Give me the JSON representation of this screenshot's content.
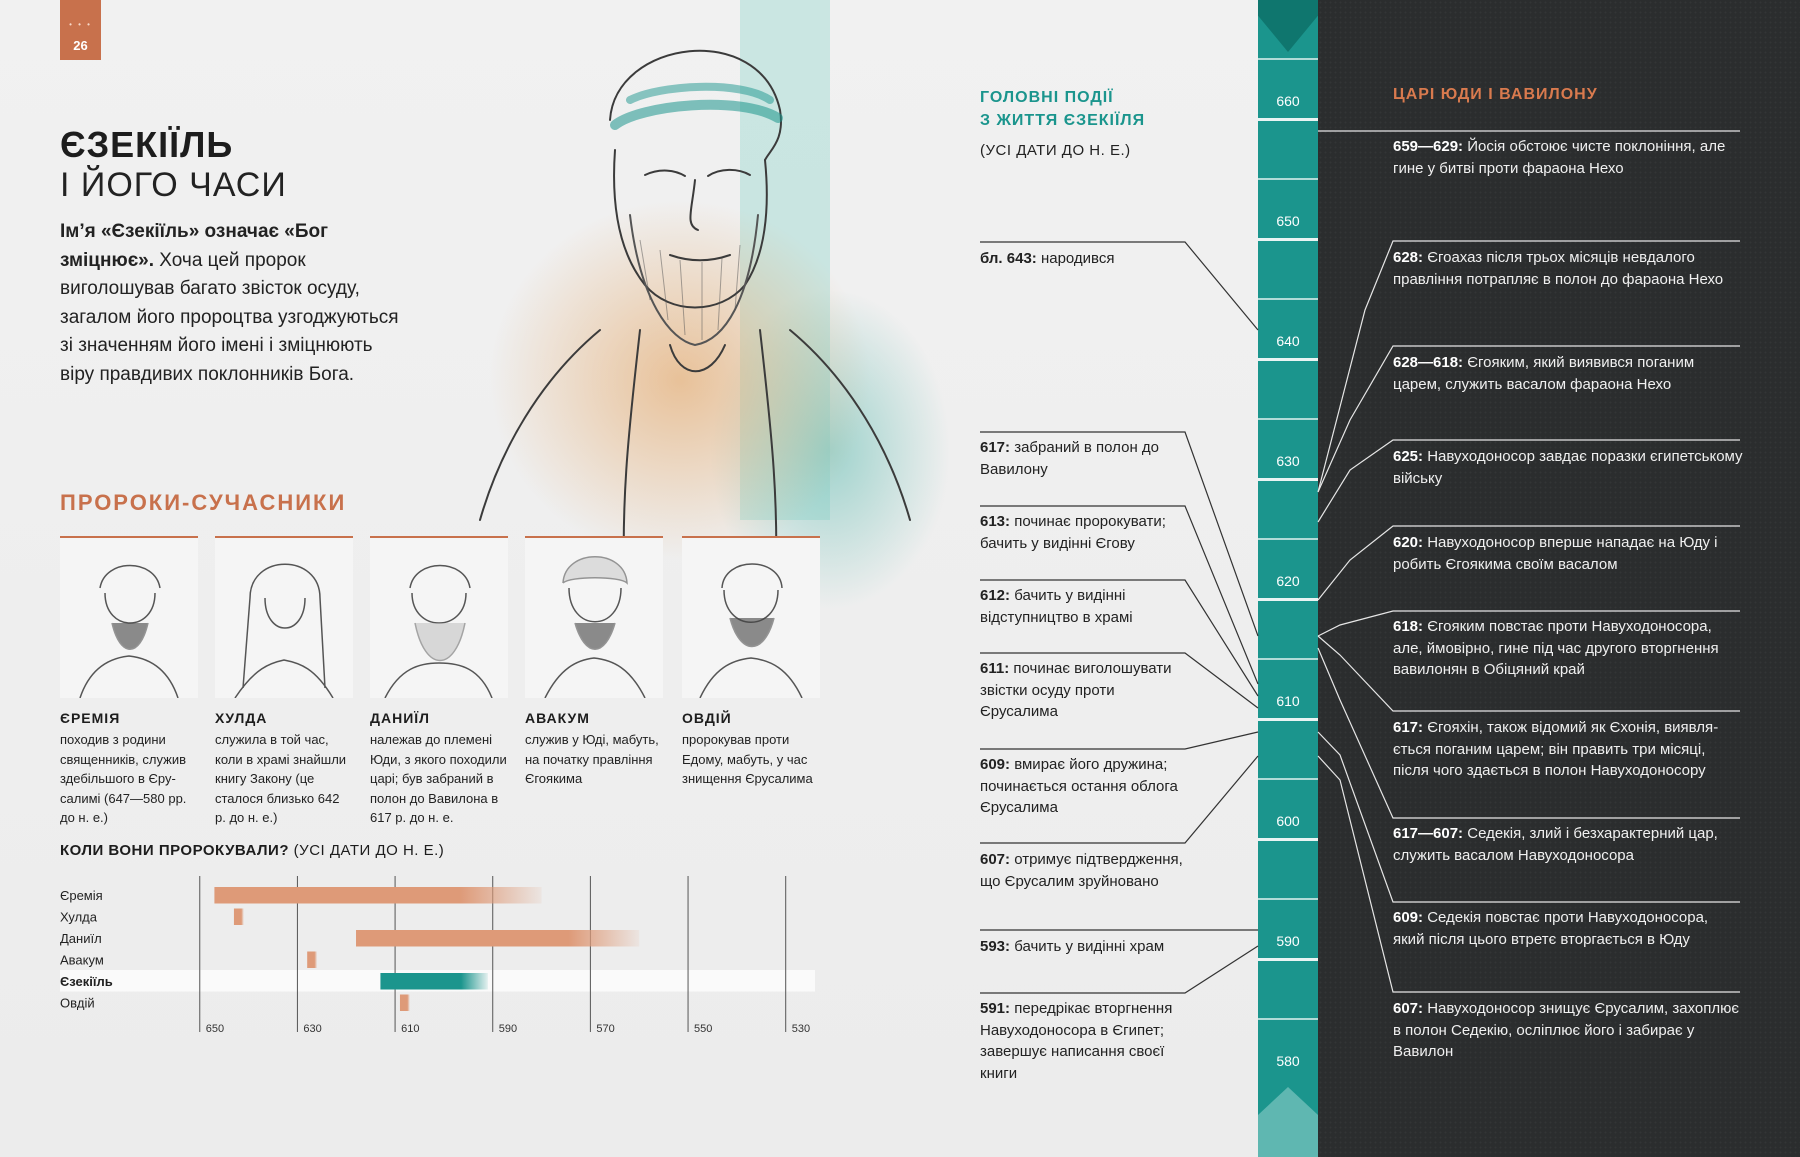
{
  "page": {
    "number": "26",
    "tab_dots": "• • •"
  },
  "title": {
    "bold": "ЄЗЕКІЇЛЬ",
    "light": "І ЙОГО ЧАСИ"
  },
  "intro": {
    "bold": "Ім’я «Єзекіїль» означає «Бог зміцнює».",
    "text": " Хоча цей пророк виголошував багато звісток осуду, загалом його пророцтва узгоджу­ються зі значенням його імені і зміцнюють віру правдивих поклонників Бога."
  },
  "prophets_section": {
    "title": "ПРОРОКИ-СУЧАСНИКИ",
    "cards": [
      {
        "name": "ЄРЕМІЯ",
        "desc": "походив з родини священників, служив здебільшого в Єру­салимі (647—580 рр. до н. е.)"
      },
      {
        "name": "ХУЛДА",
        "desc": "служила в той час, коли в храмі знайшли книгу Закону (це сталося близько 642 р. до н. е.)"
      },
      {
        "name": "ДАНИЇЛ",
        "desc": "належав до племені Юди, з якого походи­ли царі; був забраний в полон до Вавилона в 617 р. до н. е."
      },
      {
        "name": "АВАКУМ",
        "desc": "служив у Юді, мабуть, на початку правління Єгоякима"
      },
      {
        "name": "ОВДІЙ",
        "desc": "пророкував проти Едому, мабуть, у час знищення Єрусалима"
      }
    ]
  },
  "chart_data": {
    "type": "bar",
    "title": "КОЛИ ВОНИ ПРОРОКУВАЛИ?",
    "subtitle": "(УСІ ДАТИ ДО Н. Е.)",
    "categories": [
      "Єремія",
      "Хулда",
      "Даниїл",
      "Авакум",
      "Єзекіїль",
      "Овдій"
    ],
    "series": [
      {
        "values": [
          [
            647,
            580
          ],
          [
            643,
            641
          ],
          [
            618,
            560
          ],
          [
            628,
            626
          ],
          [
            613,
            591
          ],
          [
            609,
            607
          ]
        ]
      }
    ],
    "xlim": [
      652,
      524
    ],
    "xticks": [
      650,
      630,
      610,
      590,
      570,
      550,
      530
    ],
    "highlight": "Єзекіїль",
    "colors": {
      "bar": "#de9a78",
      "highlight": "#1b958d"
    }
  },
  "events": {
    "title_line1": "ГОЛОВНІ ПОДІЇ",
    "title_line2": "З ЖИТТЯ ЄЗЕКІЇЛЯ",
    "subtitle": "(УСІ ДАТИ ДО Н. Е.)",
    "items": [
      {
        "date": "бл. 643:",
        "text": " народився"
      },
      {
        "date": "617:",
        "text": " забраний в полон до Вавилону"
      },
      {
        "date": "613:",
        "text": " починає пророкувати; бачить у видінні Єгову"
      },
      {
        "date": "612:",
        "text": " бачить у видінні відступництво в храмі"
      },
      {
        "date": "611:",
        "text": " починає виголошувати звістки осуду проти Єрусалима"
      },
      {
        "date": "609:",
        "text": " вмирає його дружина; починається остання облога Єрусалима"
      },
      {
        "date": "607:",
        "text": " отримує підтвердження, що Єрусалим зруйновано"
      },
      {
        "date": "593:",
        "text": " бачить у видінні храм"
      },
      {
        "date": "591:",
        "text": " передрікає вторгнення Навуходоносора в Єгипет; завершує написання своєї книги"
      }
    ]
  },
  "ruler": {
    "labels": [
      "660",
      "650",
      "640",
      "630",
      "620",
      "610",
      "600",
      "590",
      "580"
    ]
  },
  "kings": {
    "title": "ЦАРІ ЮДИ І ВАВИЛОНУ",
    "items": [
      {
        "date": "659—629:",
        "text": " Йосія обстоює чисте поклоніння, але гине у битві проти фараона Нехо"
      },
      {
        "date": "628:",
        "text": " Єгоахаз після трьох місяців невдалого правління потрапляє в полон до фараона Нехо"
      },
      {
        "date": "628—618:",
        "text": " Єгояким, який виявився поганим царем, служить васалом фараона Нехо"
      },
      {
        "date": "625:",
        "text": " Навуходоносор завдає поразки єгипетському війську"
      },
      {
        "date": "620:",
        "text": " Навуходоносор вперше нападає на Юду і робить Єгоякима своїм васалом"
      },
      {
        "date": "618:",
        "text": " Єгояким повстає проти Навуходоносора, але, ймовірно, гине під час другого вторг­нення вавилонян в Обіцяний край"
      },
      {
        "date": "617:",
        "text": " Єгояхін, також відомий як Єхонія, виявля­ється поганим царем; він править три місяці, після чого здається в полон Навуходоносору"
      },
      {
        "date": "617—607:",
        "text": " Седекія, злий і безхарактерний цар, служить васалом Навуходоносора"
      },
      {
        "date": "609:",
        "text": " Седекія повстає проти Навуходоносора, який після цього втретє вторгається в Юду"
      },
      {
        "date": "607:",
        "text": " Навуходоносор знищує Єрусалим, захоплює в полон Седекію, осліплює його і забирає у Вавилон"
      }
    ]
  }
}
